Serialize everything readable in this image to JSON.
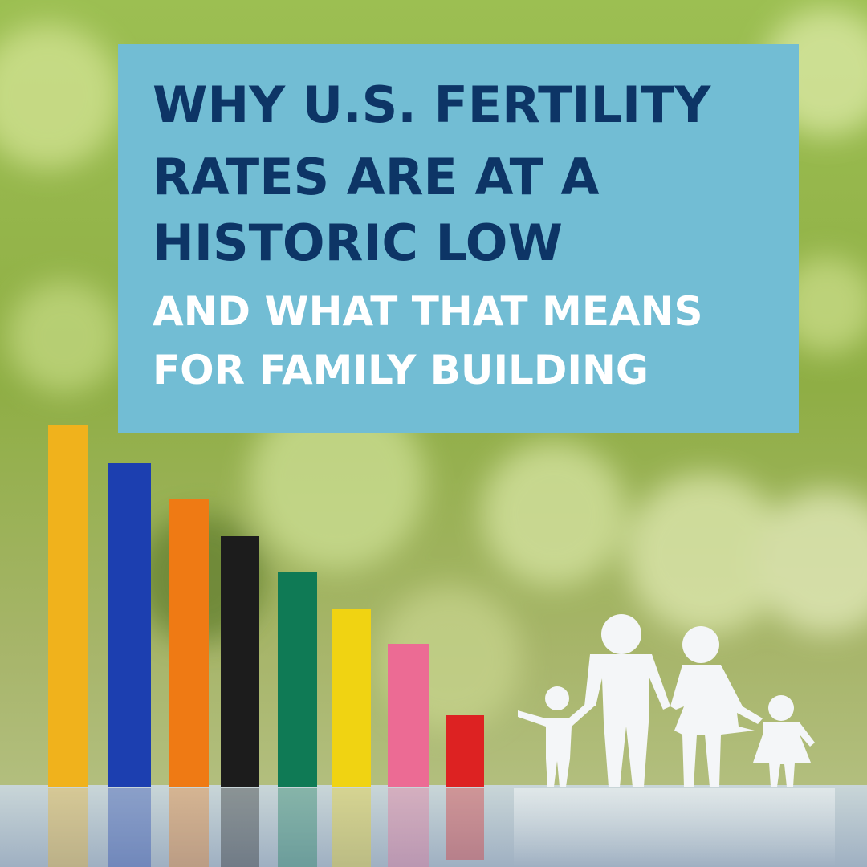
{
  "headline": {
    "title_lines": [
      "WHY U.S. FERTILITY",
      "RATES ARE AT A",
      "HISTORIC LOW"
    ],
    "subtitle_lines": [
      "AND WHAT THAT MEANS",
      "FOR FAMILY BUILDING"
    ]
  }
}
